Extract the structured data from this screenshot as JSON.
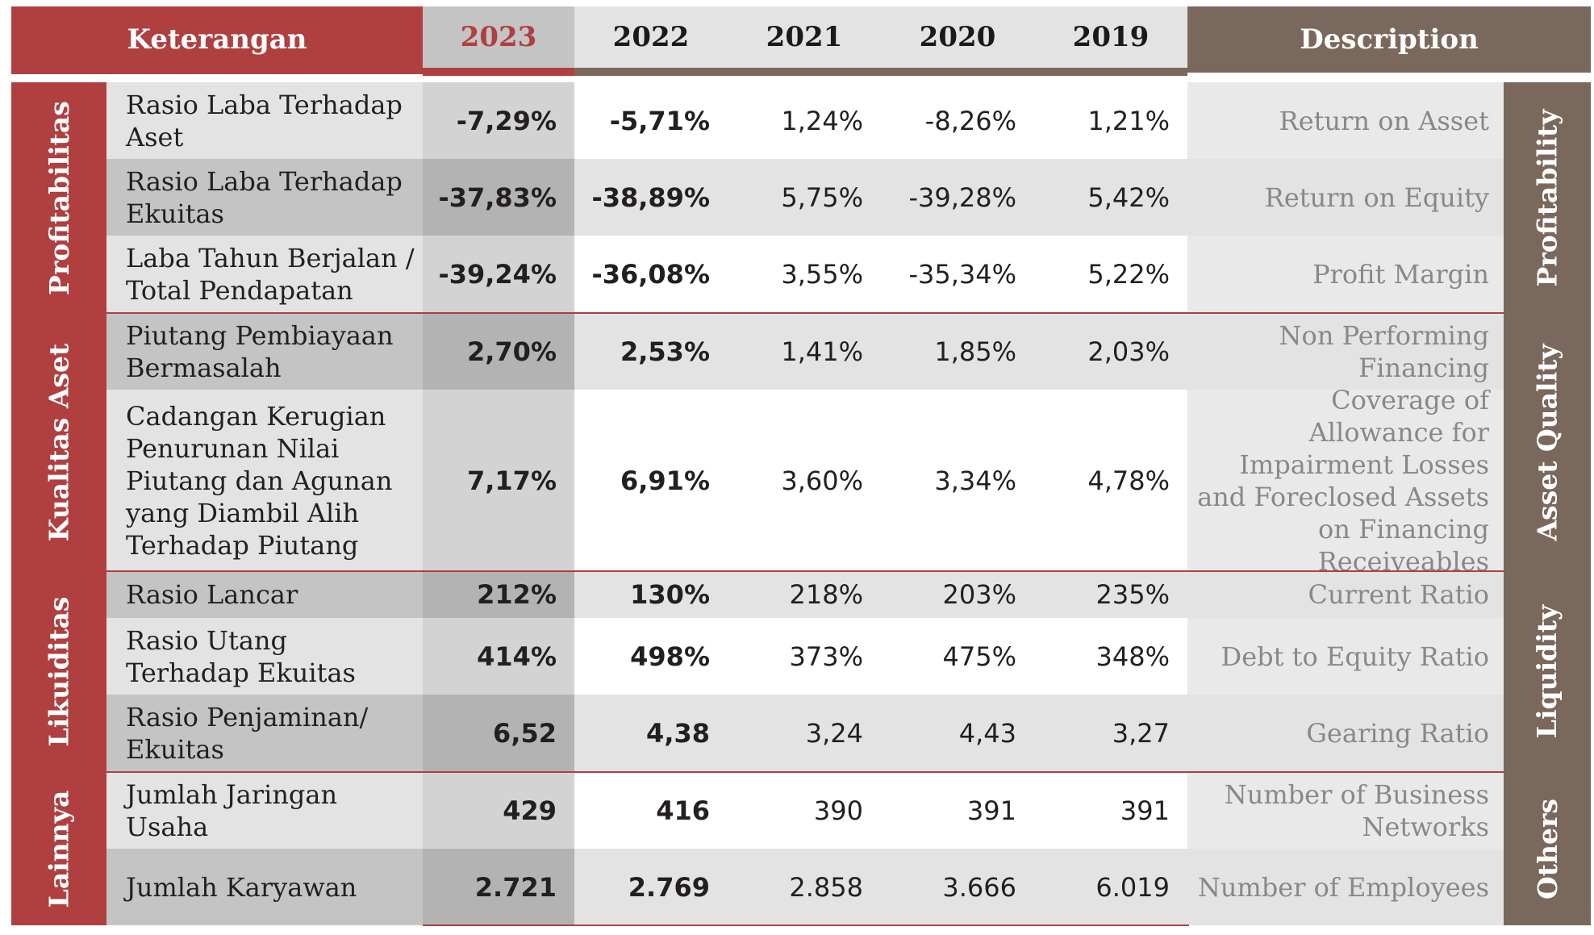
{
  "header": {
    "keterangan": "Keterangan",
    "years": [
      "2023",
      "2022",
      "2021",
      "2020",
      "2019"
    ],
    "description": "Description"
  },
  "groups": [
    {
      "left": "Profitabilitas",
      "right": "Profitability"
    },
    {
      "left": "Kualitas Aset",
      "right": "Asset Quality"
    },
    {
      "left": "Likuiditas",
      "right": "Liquidity"
    },
    {
      "left": "Lainnya",
      "right": "Others"
    }
  ],
  "rows": [
    {
      "label": "Rasio Laba Terhadap Aset",
      "values": [
        "-7,29%",
        "-5,71%",
        "1,24%",
        "-8,26%",
        "1,21%"
      ],
      "desc": "Return on Asset"
    },
    {
      "label": "Rasio Laba Terhadap Ekuitas",
      "values": [
        "-37,83%",
        "-38,89%",
        "5,75%",
        "-39,28%",
        "5,42%"
      ],
      "desc": "Return on Equity"
    },
    {
      "label": "Laba Tahun Berjalan / Total Pendapatan",
      "values": [
        "-39,24%",
        "-36,08%",
        "3,55%",
        "-35,34%",
        "5,22%"
      ],
      "desc": "Profit Margin"
    },
    {
      "label": "Piutang Pembiayaan Bermasalah",
      "values": [
        "2,70%",
        "2,53%",
        "1,41%",
        "1,85%",
        "2,03%"
      ],
      "desc": "Non Performing Financing"
    },
    {
      "label": "Cadangan Kerugian Penurunan Nilai Piutang dan Agunan yang Diambil Alih Terhadap Piutang",
      "values": [
        "7,17%",
        "6,91%",
        "3,60%",
        "3,34%",
        "4,78%"
      ],
      "desc": "Coverage of Allowance for Impairment Losses and Foreclosed Assets on Financing Receiveables"
    },
    {
      "label": "Rasio Lancar",
      "values": [
        "212%",
        "130%",
        "218%",
        "203%",
        "235%"
      ],
      "desc": "Current Ratio"
    },
    {
      "label": "Rasio Utang Terhadap Ekuitas",
      "values": [
        "414%",
        "498%",
        "373%",
        "475%",
        "348%"
      ],
      "desc": "Debt to Equity Ratio"
    },
    {
      "label": "Rasio Penjaminan/ Ekuitas",
      "values": [
        "6,52",
        "4,38",
        "3,24",
        "4,43",
        "3,27"
      ],
      "desc": "Gearing Ratio"
    },
    {
      "label": "Jumlah Jaringan Usaha",
      "values": [
        "429",
        "416",
        "390",
        "391",
        "391"
      ],
      "desc": "Number of Business Networks"
    },
    {
      "label": "Jumlah Karyawan",
      "values": [
        "2.721",
        "2.769",
        "2.858",
        "3.666",
        "6.019"
      ],
      "desc": "Number of Employees"
    }
  ],
  "colors": {
    "red": "#b03f3f",
    "brown": "#7b685d",
    "grey_dark": "#c4c4c4",
    "grey_light": "#e3e3e3",
    "desc_text": "#888888"
  }
}
